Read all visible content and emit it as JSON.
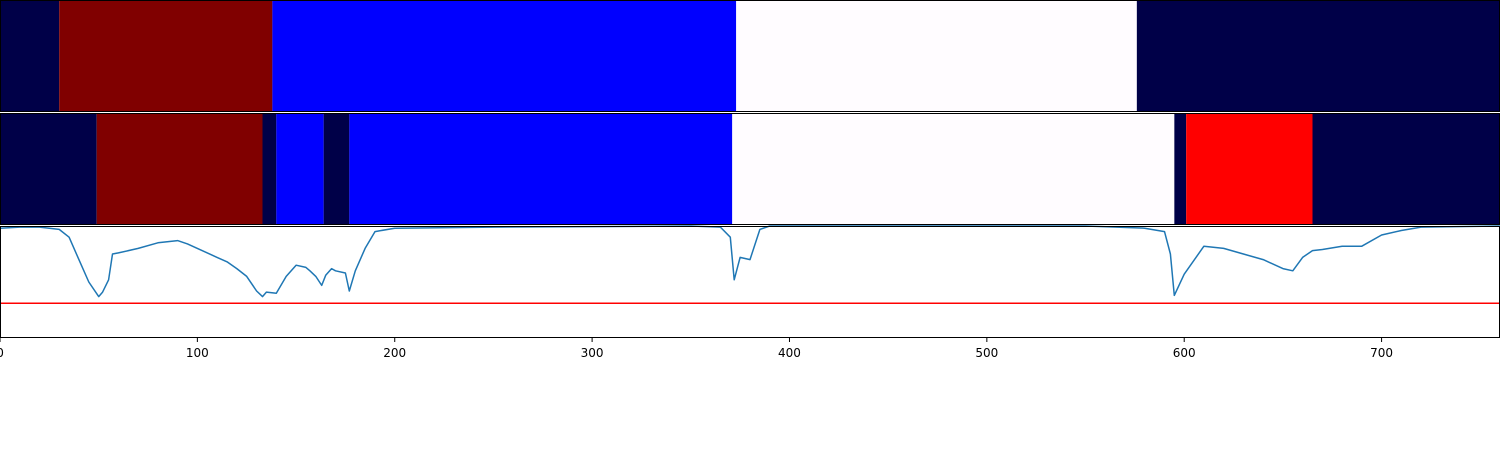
{
  "chart_data": [
    {
      "type": "heatmap",
      "panel": "segmentation-top",
      "x_range": [
        0,
        760
      ],
      "segments": [
        {
          "start": 0,
          "end": 30,
          "color": "#000048"
        },
        {
          "start": 30,
          "end": 138,
          "color": "#800000"
        },
        {
          "start": 138,
          "end": 373,
          "color": "#0000ff"
        },
        {
          "start": 373,
          "end": 576,
          "color": "#fffcff"
        },
        {
          "start": 576,
          "end": 760,
          "color": "#000048"
        }
      ]
    },
    {
      "type": "heatmap",
      "panel": "segmentation-bottom",
      "x_range": [
        0,
        760
      ],
      "segments": [
        {
          "start": 0,
          "end": 49,
          "color": "#000048"
        },
        {
          "start": 49,
          "end": 133,
          "color": "#800000"
        },
        {
          "start": 133,
          "end": 140,
          "color": "#000048"
        },
        {
          "start": 140,
          "end": 164,
          "color": "#0000ff"
        },
        {
          "start": 164,
          "end": 177,
          "color": "#000048"
        },
        {
          "start": 177,
          "end": 371,
          "color": "#0000ff"
        },
        {
          "start": 371,
          "end": 595,
          "color": "#fffcff"
        },
        {
          "start": 595,
          "end": 601,
          "color": "#000048"
        },
        {
          "start": 601,
          "end": 665,
          "color": "#ff0000"
        },
        {
          "start": 665,
          "end": 760,
          "color": "#000048"
        }
      ]
    },
    {
      "type": "line",
      "panel": "score-line",
      "xlim": [
        0,
        760
      ],
      "ylim": [
        0,
        1
      ],
      "grid": false,
      "line_color": "#1f77b4",
      "threshold": 0.31,
      "threshold_color": "#ff0000",
      "xticks": [
        0,
        100,
        200,
        300,
        400,
        500,
        600,
        700
      ],
      "x": [
        0,
        10,
        20,
        30,
        35,
        40,
        45,
        50,
        52,
        55,
        57,
        60,
        70,
        80,
        90,
        95,
        100,
        110,
        115,
        120,
        125,
        130,
        133,
        135,
        140,
        145,
        150,
        155,
        157,
        160,
        163,
        165,
        168,
        170,
        175,
        177,
        180,
        185,
        190,
        200,
        250,
        300,
        350,
        365,
        370,
        372,
        375,
        380,
        385,
        390,
        400,
        500,
        550,
        580,
        590,
        593,
        595,
        600,
        610,
        620,
        630,
        640,
        650,
        655,
        660,
        665,
        670,
        680,
        690,
        700,
        710,
        720,
        760
      ],
      "y": [
        0.98,
        0.99,
        0.99,
        0.97,
        0.9,
        0.7,
        0.5,
        0.37,
        0.41,
        0.52,
        0.75,
        0.76,
        0.8,
        0.85,
        0.87,
        0.84,
        0.8,
        0.72,
        0.68,
        0.62,
        0.55,
        0.42,
        0.37,
        0.41,
        0.4,
        0.55,
        0.65,
        0.63,
        0.6,
        0.55,
        0.47,
        0.56,
        0.62,
        0.6,
        0.58,
        0.42,
        0.6,
        0.8,
        0.95,
        0.98,
        0.99,
        0.995,
        1.0,
        0.99,
        0.9,
        0.52,
        0.72,
        0.7,
        0.97,
        1.0,
        1.0,
        1.0,
        1.0,
        0.98,
        0.95,
        0.75,
        0.38,
        0.57,
        0.82,
        0.8,
        0.75,
        0.7,
        0.62,
        0.6,
        0.72,
        0.78,
        0.79,
        0.82,
        0.82,
        0.92,
        0.96,
        0.99,
        1.0
      ]
    }
  ]
}
